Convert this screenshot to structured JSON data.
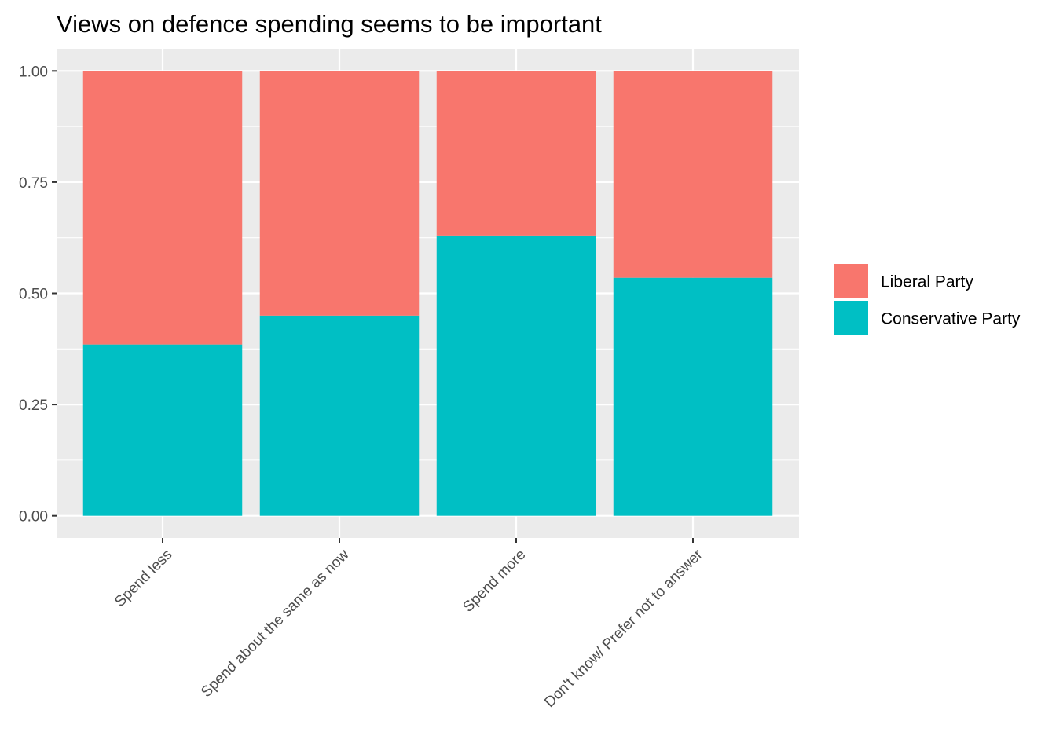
{
  "chart_data": {
    "type": "bar",
    "stacked": true,
    "title": "Views on defence spending seems to be important",
    "xlabel": "",
    "ylabel": "",
    "ylim": [
      0,
      1.05
    ],
    "yticks": [
      "0.00",
      "0.25",
      "0.50",
      "0.75",
      "1.00"
    ],
    "ytick_values": [
      0,
      0.25,
      0.5,
      0.75,
      1.0
    ],
    "categories": [
      "Spend less",
      "Spend about the same as now",
      "Spend more",
      "Don't know/ Prefer not to answer"
    ],
    "series": [
      {
        "name": "Conservative Party",
        "color": "#00BFC4",
        "values": [
          0.385,
          0.45,
          0.63,
          0.535
        ]
      },
      {
        "name": "Liberal Party",
        "color": "#F8766D",
        "values": [
          0.615,
          0.55,
          0.37,
          0.465
        ]
      }
    ],
    "legend": {
      "position": "right",
      "entries": [
        {
          "label": "Liberal Party",
          "color": "#F8766D"
        },
        {
          "label": "Conservative Party",
          "color": "#00BFC4"
        }
      ]
    },
    "grid": true,
    "panel_background": "#EBEBEB"
  }
}
